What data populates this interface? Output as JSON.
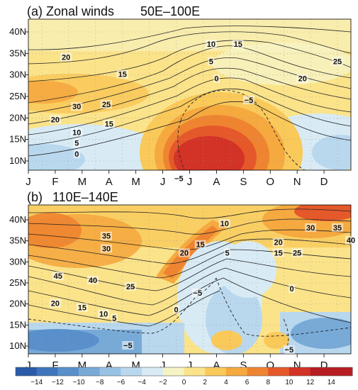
{
  "chart_data": {
    "type": "heatmap",
    "months": [
      "J",
      "F",
      "M",
      "A",
      "M",
      "J",
      "J",
      "A",
      "S",
      "O",
      "N",
      "D"
    ],
    "lat_ticks": [
      "10N",
      "15N",
      "20N",
      "25N",
      "30N",
      "35N",
      "40N"
    ],
    "lat_values": [
      10,
      15,
      20,
      25,
      30,
      35,
      40
    ],
    "colorbar": {
      "ticks": [
        "−14",
        "−12",
        "−10",
        "−8",
        "−6",
        "−4",
        "−2",
        "0",
        "2",
        "4",
        "6",
        "8",
        "10",
        "12",
        "14"
      ],
      "colors": [
        "#2a5ba8",
        "#3f75bd",
        "#5990cc",
        "#78aad8",
        "#98c2e3",
        "#b9d8ee",
        "#d8ebf5",
        "#f6f3c4",
        "#fbe38a",
        "#f9c95a",
        "#f5a93f",
        "#ef8430",
        "#e5582a",
        "#d33226",
        "#b61d22"
      ]
    },
    "panels": [
      {
        "title": "(a) Zonal winds",
        "subtitle": "50E–100E",
        "contour_labels": [
          {
            "text": "20",
            "m": 1.4,
            "lat": 34
          },
          {
            "text": "15",
            "m": 3.5,
            "lat": 30
          },
          {
            "text": "10",
            "m": 6.8,
            "lat": 37
          },
          {
            "text": "15",
            "m": 7.8,
            "lat": 37
          },
          {
            "text": "5",
            "m": 6.8,
            "lat": 33
          },
          {
            "text": "0",
            "m": 7.0,
            "lat": 29
          },
          {
            "text": "−5",
            "m": 8.2,
            "lat": 24
          },
          {
            "text": "20",
            "m": 10.2,
            "lat": 29
          },
          {
            "text": "25",
            "m": 11.5,
            "lat": 33
          },
          {
            "text": "30",
            "m": 1.8,
            "lat": 22.5
          },
          {
            "text": "25",
            "m": 2.9,
            "lat": 23
          },
          {
            "text": "20",
            "m": 1.0,
            "lat": 19.5
          },
          {
            "text": "15",
            "m": 3.0,
            "lat": 18.5
          },
          {
            "text": "10",
            "m": 1.8,
            "lat": 16.5
          },
          {
            "text": "5",
            "m": 1.8,
            "lat": 14
          },
          {
            "text": "0",
            "m": 1.8,
            "lat": 11.5
          },
          {
            "text": "−5",
            "m": 5.6,
            "lat": 5.8
          }
        ]
      },
      {
        "title": "(b)",
        "subtitle": "110E–140E",
        "contour_labels": [
          {
            "text": "35",
            "m": 2.9,
            "lat": 36
          },
          {
            "text": "30",
            "m": 2.9,
            "lat": 33
          },
          {
            "text": "45",
            "m": 1.1,
            "lat": 26.5
          },
          {
            "text": "40",
            "m": 2.4,
            "lat": 25.5
          },
          {
            "text": "25",
            "m": 3.8,
            "lat": 24
          },
          {
            "text": "20",
            "m": 5.8,
            "lat": 32
          },
          {
            "text": "15",
            "m": 6.4,
            "lat": 34
          },
          {
            "text": "10",
            "m": 7.3,
            "lat": 39
          },
          {
            "text": "5",
            "m": 7.4,
            "lat": 32
          },
          {
            "text": "−5",
            "m": 6.3,
            "lat": 22.5
          },
          {
            "text": "0",
            "m": 5.5,
            "lat": 18.5
          },
          {
            "text": "20",
            "m": 1.0,
            "lat": 20
          },
          {
            "text": "15",
            "m": 2.0,
            "lat": 19
          },
          {
            "text": "10",
            "m": 2.8,
            "lat": 17.5
          },
          {
            "text": "5",
            "m": 3.2,
            "lat": 16.5
          },
          {
            "text": "−5",
            "m": 3.7,
            "lat": 10
          },
          {
            "text": "20",
            "m": 9.3,
            "lat": 34.5
          },
          {
            "text": "15",
            "m": 9.3,
            "lat": 32
          },
          {
            "text": "25",
            "m": 10.0,
            "lat": 32
          },
          {
            "text": "30",
            "m": 10.5,
            "lat": 38
          },
          {
            "text": "35",
            "m": 11.5,
            "lat": 38
          },
          {
            "text": "40",
            "m": 12.0,
            "lat": 35
          },
          {
            "text": "0",
            "m": 9.8,
            "lat": 23.5
          },
          {
            "text": "−5",
            "m": 9.7,
            "lat": 9
          }
        ]
      }
    ]
  }
}
